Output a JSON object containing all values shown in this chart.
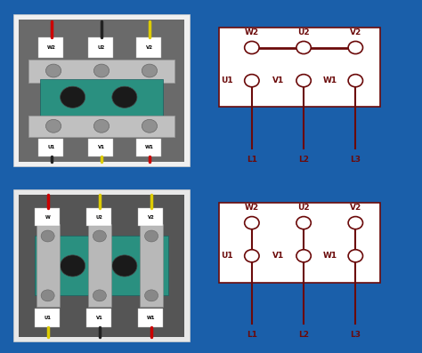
{
  "bg_color": "#1a5faa",
  "white": "#ffffff",
  "dc": "#6b0a0a",
  "photo_bg": "#5a5a5a",
  "photo_frame": "#e8e8e8",
  "teal": "#3a9a8a",
  "silver": "#b8b8b8",
  "font_size": 6.5,
  "top_diagram": {
    "top_labels": [
      "W2",
      "U2",
      "V2"
    ],
    "bot_labels": [
      "U1",
      "V1",
      "W1"
    ],
    "L_labels": [
      "L1",
      "L2",
      "L3"
    ],
    "has_bar": true
  },
  "bottom_diagram": {
    "top_labels": [
      "W2",
      "U2",
      "V2"
    ],
    "bot_labels": [
      "U1",
      "V1",
      "W1"
    ],
    "L_labels": [
      "L1",
      "L2",
      "L3"
    ],
    "has_bar": false
  }
}
